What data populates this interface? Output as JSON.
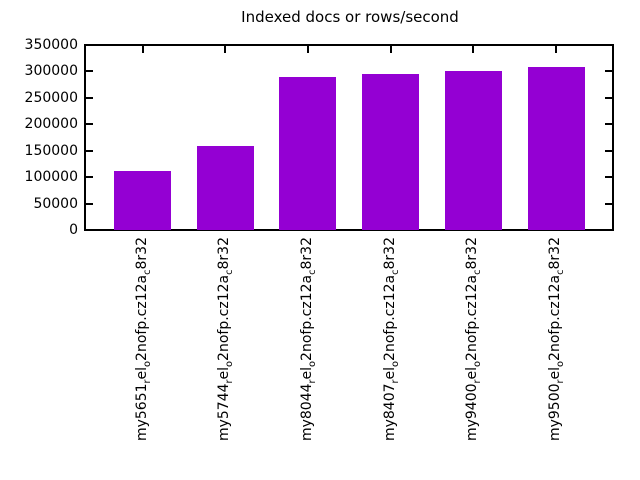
{
  "chart_data": {
    "type": "bar",
    "title": "Indexed docs or rows/second",
    "xlabel": "",
    "ylabel": "",
    "categories": [
      "my5651_{r}el_{o}2nofp.cz12a_{c}8r32",
      "my5744_{r}el_{o}2nofp.cz12a_{c}8r32",
      "my8044_{r}el_{o}2nofp.cz12a_{c}8r32",
      "my8407_{r}el_{o}2nofp.cz12a_{c}8r32",
      "my9400_{r}el_{o}2nofp.cz12a_{c}8r32",
      "my9500_{r}el_{o}2nofp.cz12a_{c}8r32"
    ],
    "values": [
      111000,
      159000,
      289000,
      295000,
      301000,
      308000
    ],
    "ylim": [
      0,
      350000
    ],
    "y_ticks": [
      0,
      50000,
      100000,
      150000,
      200000,
      250000,
      300000,
      350000
    ],
    "bar_color": "#9400d3",
    "axis_color": "#000000",
    "grid": false,
    "legend_position": "none"
  }
}
